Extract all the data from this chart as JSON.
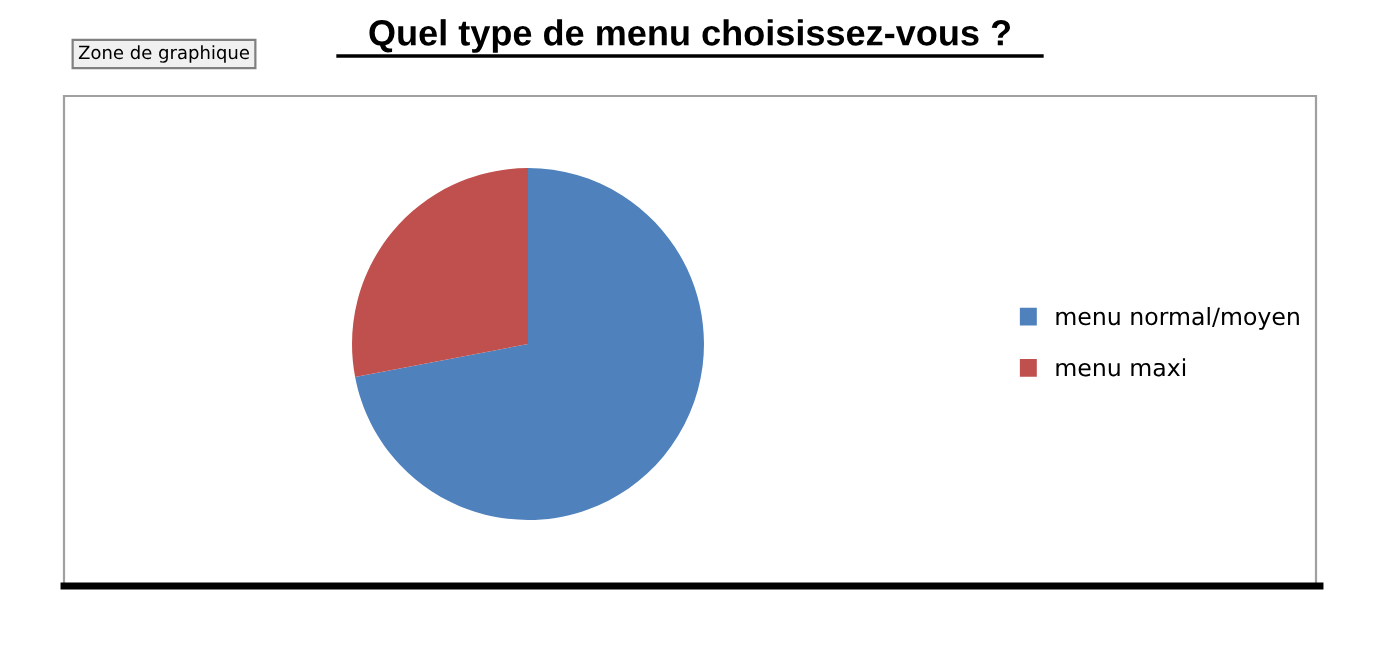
{
  "chart_data": {
    "type": "pie",
    "title": "Quel type de menu choisissez-vous ?",
    "categories": [
      "menu normal/moyen",
      "menu maxi"
    ],
    "values": [
      72,
      28
    ],
    "colors": [
      "#4f81bd",
      "#c0504d"
    ],
    "legend": "right",
    "annotations": [
      "Zone de graphique"
    ]
  }
}
